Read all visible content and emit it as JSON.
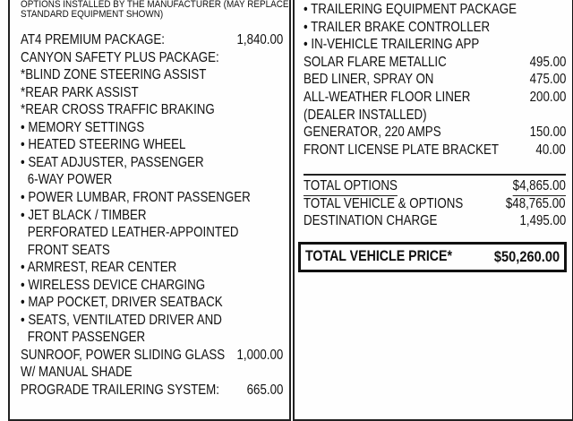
{
  "left": {
    "header": [
      "OPTIONS INSTALLED BY THE MANUFACTURER (MAY REPLACE",
      "STANDARD EQUIPMENT SHOWN)"
    ],
    "lines": [
      {
        "text": "AT4 PREMIUM PACKAGE:",
        "amount": "1,840.00"
      },
      {
        "text": "CANYON SAFETY PLUS PACKAGE:"
      },
      {
        "text": " *BLIND ZONE STEERING ASSIST"
      },
      {
        "text": " *REAR PARK ASSIST"
      },
      {
        "text": " *REAR CROSS TRAFFIC BRAKING"
      },
      {
        "text": "• MEMORY SETTINGS"
      },
      {
        "text": "• HEATED STEERING WHEEL"
      },
      {
        "text": "• SEAT ADJUSTER, PASSENGER"
      },
      {
        "text": "6-WAY POWER",
        "indent": true
      },
      {
        "text": "• POWER LUMBAR, FRONT PASSENGER"
      },
      {
        "text": "• JET BLACK / TIMBER"
      },
      {
        "text": "PERFORATED LEATHER-APPOINTED",
        "indent": true
      },
      {
        "text": "FRONT SEATS",
        "indent": true
      },
      {
        "text": "• ARMREST, REAR CENTER"
      },
      {
        "text": "• WIRELESS DEVICE CHARGING"
      },
      {
        "text": "• MAP POCKET, DRIVER SEATBACK"
      },
      {
        "text": "• SEATS, VENTILATED DRIVER AND"
      },
      {
        "text": "FRONT PASSENGER",
        "indent": true
      },
      {
        "text": "SUNROOF, POWER SLIDING GLASS",
        "amount": "1,000.00"
      },
      {
        "text": "W/ MANUAL SHADE"
      },
      {
        "text": "PROGRADE TRAILERING SYSTEM:",
        "amount": "665.00"
      }
    ]
  },
  "right": {
    "lines": [
      {
        "text": "• TRAILERING EQUIPMENT PACKAGE"
      },
      {
        "text": "• TRAILER BRAKE CONTROLLER"
      },
      {
        "text": "• IN-VEHICLE TRAILERING APP"
      },
      {
        "text": "SOLAR FLARE METALLIC",
        "amount": "495.00"
      },
      {
        "text": "BED LINER, SPRAY ON",
        "amount": "475.00"
      },
      {
        "text": "ALL-WEATHER FLOOR LINER",
        "amount": "200.00"
      },
      {
        "text": "(DEALER INSTALLED)"
      },
      {
        "text": "GENERATOR, 220 AMPS",
        "amount": "150.00"
      },
      {
        "text": "FRONT LICENSE PLATE BRACKET",
        "amount": "40.00"
      }
    ],
    "totals": [
      {
        "text": "TOTAL OPTIONS",
        "amount": "$4,865.00"
      },
      {
        "text": "TOTAL VEHICLE & OPTIONS",
        "amount": "$48,765.00"
      },
      {
        "text": "DESTINATION CHARGE",
        "amount": "1,495.00"
      }
    ],
    "total_price": {
      "label": "TOTAL VEHICLE PRICE*",
      "amount": "$50,260.00"
    }
  }
}
